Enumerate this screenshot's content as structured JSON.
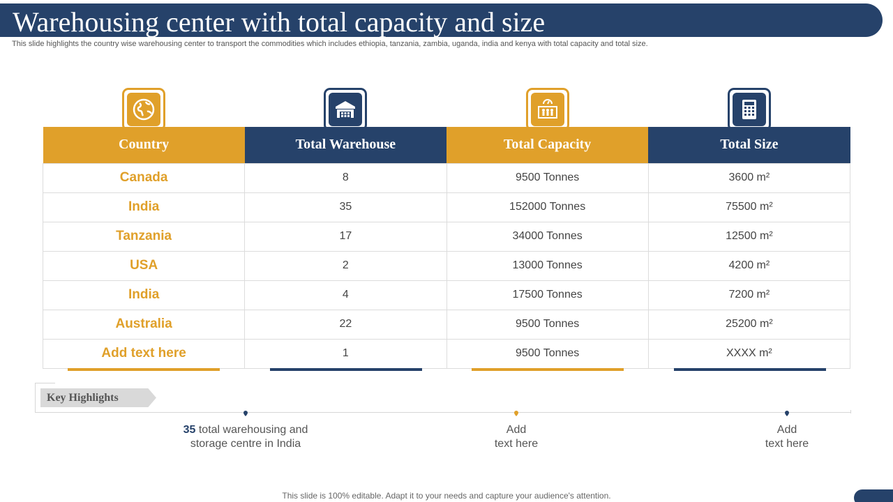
{
  "title": "Warehousing center with total capacity and size",
  "subtitle": "This slide highlights the country wise warehousing center to transport the commodities which includes ethiopia, tanzania, zambia, uganda, india and kenya with total capacity and total size.",
  "colors": {
    "gold": "#e0a02a",
    "navy": "#26426a"
  },
  "columns": [
    {
      "label": "Country",
      "icon": "globe-icon",
      "color": "gold"
    },
    {
      "label": "Total Warehouse",
      "icon": "warehouse-icon",
      "color": "navy"
    },
    {
      "label": "Total Capacity",
      "icon": "capacity-gauge-icon",
      "color": "gold"
    },
    {
      "label": "Total Size",
      "icon": "calculator-icon",
      "color": "navy"
    }
  ],
  "rows": [
    {
      "country": "Canada",
      "warehouses": "8",
      "capacity": "9500 Tonnes",
      "size": "3600 m²"
    },
    {
      "country": "India",
      "warehouses": "35",
      "capacity": "152000 Tonnes",
      "size": "75500 m²"
    },
    {
      "country": "Tanzania",
      "warehouses": "17",
      "capacity": "34000 Tonnes",
      "size": "12500 m²"
    },
    {
      "country": "USA",
      "warehouses": "2",
      "capacity": "13000 Tonnes",
      "size": "4200 m²"
    },
    {
      "country": "India",
      "warehouses": "4",
      "capacity": "17500 Tonnes",
      "size": "7200 m²"
    },
    {
      "country": "Australia",
      "warehouses": "22",
      "capacity": "9500 Tonnes",
      "size": "25200 m²"
    },
    {
      "country": "Add text here",
      "warehouses": "1",
      "capacity": "9500 Tonnes",
      "size": "XXXX m²"
    }
  ],
  "key_highlights": {
    "label": "Key Highlights",
    "items": [
      {
        "number": "35",
        "line1": "total warehousing and",
        "line2": "storage centre in India"
      },
      {
        "line1": "Add",
        "line2": "text here"
      },
      {
        "line1": "Add",
        "line2": "text here"
      }
    ]
  },
  "footer": "This slide is 100% editable. Adapt it to your needs and capture your audience's attention."
}
